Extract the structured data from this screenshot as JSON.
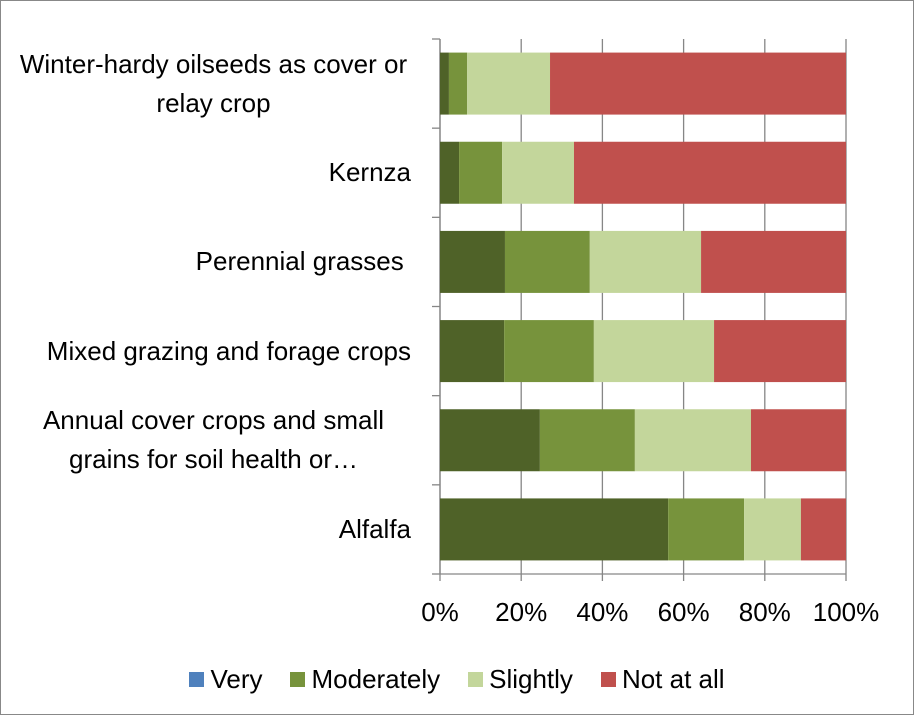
{
  "chart_data": {
    "type": "stacked_barh",
    "categories": [
      "Winter-hardy oilseeds as cover or relay crop",
      "Kernza",
      "Perennial grasses ",
      "Mixed grazing and forage crops",
      "Annual cover crops and small grains for soil health or…",
      "Alfalfa"
    ],
    "series": [
      {
        "name": "Very",
        "color": "#4f6228",
        "legend_color": "#4f81bd",
        "values": [
          2.2,
          4.7,
          16.0,
          15.8,
          24.6,
          56.2
        ]
      },
      {
        "name": "Moderately",
        "color": "#77933c",
        "values": [
          4.5,
          10.6,
          20.9,
          22.1,
          23.4,
          18.7
        ]
      },
      {
        "name": "Slightly",
        "color": "#c3d69b",
        "values": [
          20.4,
          17.7,
          27.4,
          29.6,
          28.6,
          14.0
        ]
      },
      {
        "name": "Not at all",
        "color": "#c0504d",
        "values": [
          72.9,
          67.0,
          35.7,
          32.5,
          23.4,
          11.1
        ]
      }
    ],
    "xlim": [
      0,
      100
    ],
    "xticks": [
      {
        "value": 0,
        "label": "0%"
      },
      {
        "value": 20,
        "label": "20%"
      },
      {
        "value": 40,
        "label": "40%"
      },
      {
        "value": 60,
        "label": "60%"
      },
      {
        "value": 80,
        "label": "80%"
      },
      {
        "value": 100,
        "label": "100%"
      }
    ],
    "grid": true,
    "legend": "bottom"
  }
}
